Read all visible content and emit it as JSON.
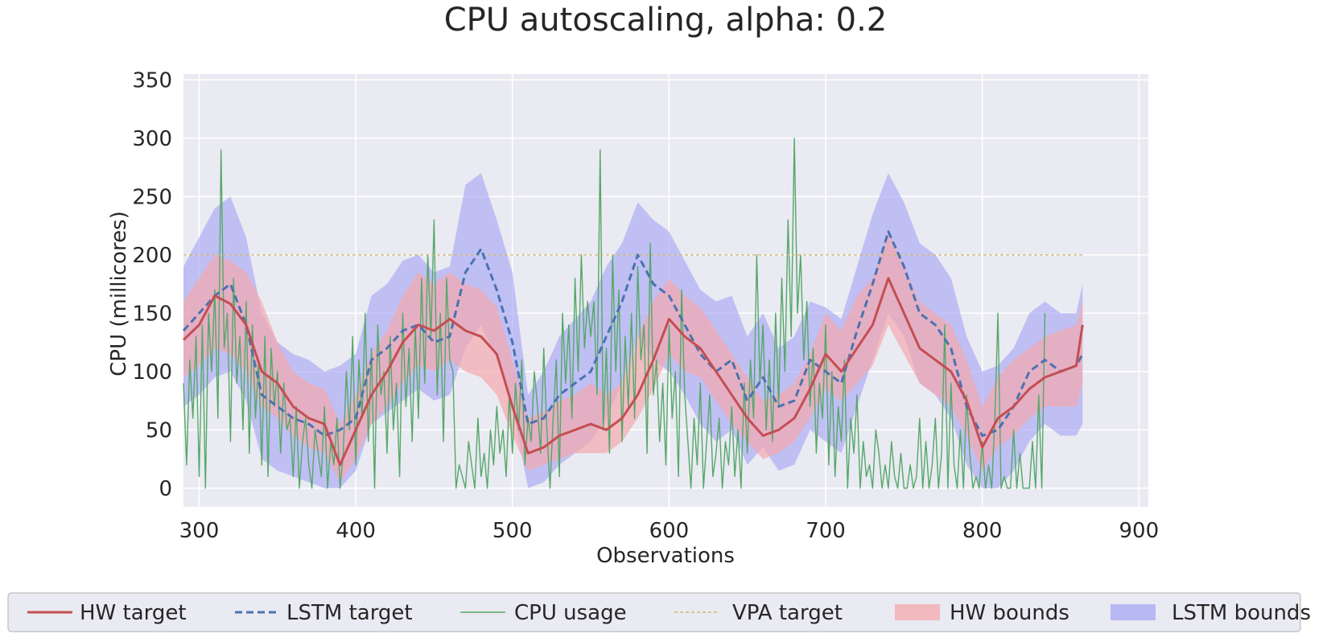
{
  "chart_data": {
    "type": "line",
    "title": "CPU autoscaling, alpha: 0.2",
    "xlabel": "Observations",
    "ylabel": "CPU (millicores)",
    "xlim": [
      290,
      906
    ],
    "ylim": [
      -16,
      355
    ],
    "xticks": [
      300,
      400,
      500,
      600,
      700,
      800,
      900
    ],
    "yticks": [
      0,
      50,
      100,
      150,
      200,
      250,
      300,
      350
    ],
    "grid": true,
    "legend_position": "bottom",
    "colors": {
      "background": "#eaeaf2",
      "grid": "#ffffff",
      "hw_target": "#c44e52",
      "lstm_target": "#4c72b0",
      "cpu_usage": "#55a868",
      "vpa_target": "#ccb974",
      "hw_bounds": "#f4a8ae",
      "lstm_bounds": "#a7a7f5"
    },
    "legend": [
      {
        "key": "hw_target",
        "label": "HW target",
        "style": "line"
      },
      {
        "key": "lstm_target",
        "label": "LSTM target",
        "style": "dashed"
      },
      {
        "key": "cpu_usage",
        "label": "CPU usage",
        "style": "thin"
      },
      {
        "key": "vpa_target",
        "label": "VPA target",
        "style": "dotted"
      },
      {
        "key": "hw_bounds",
        "label": "HW bounds",
        "style": "patch"
      },
      {
        "key": "lstm_bounds",
        "label": "LSTM bounds",
        "style": "patch"
      }
    ],
    "series": [
      {
        "name": "HW target",
        "x": [
          290,
          300,
          310,
          320,
          330,
          340,
          350,
          360,
          370,
          380,
          390,
          400,
          410,
          420,
          430,
          440,
          450,
          460,
          470,
          480,
          490,
          500,
          510,
          520,
          530,
          540,
          550,
          560,
          570,
          580,
          590,
          600,
          610,
          620,
          630,
          640,
          650,
          660,
          670,
          680,
          690,
          700,
          710,
          720,
          730,
          740,
          750,
          760,
          770,
          780,
          790,
          800,
          810,
          820,
          830,
          840,
          850,
          860,
          864
        ],
        "y": [
          127,
          140,
          165,
          158,
          140,
          100,
          90,
          70,
          60,
          55,
          20,
          50,
          80,
          100,
          125,
          140,
          135,
          145,
          135,
          130,
          115,
          70,
          30,
          35,
          45,
          50,
          55,
          50,
          60,
          80,
          110,
          145,
          130,
          120,
          100,
          80,
          60,
          45,
          50,
          60,
          85,
          115,
          100,
          120,
          140,
          180,
          150,
          120,
          110,
          100,
          75,
          35,
          60,
          70,
          85,
          95,
          100,
          105,
          140
        ]
      },
      {
        "name": "LSTM target",
        "x": [
          290,
          300,
          310,
          320,
          330,
          340,
          350,
          360,
          370,
          380,
          390,
          400,
          410,
          420,
          430,
          440,
          450,
          460,
          470,
          480,
          490,
          500,
          510,
          520,
          530,
          540,
          550,
          560,
          570,
          580,
          590,
          600,
          610,
          620,
          630,
          640,
          650,
          660,
          670,
          680,
          690,
          700,
          710,
          720,
          730,
          740,
          750,
          760,
          770,
          780,
          790,
          800,
          810,
          820,
          830,
          840,
          850,
          860,
          864
        ],
        "y": [
          135,
          150,
          165,
          175,
          140,
          80,
          70,
          60,
          55,
          45,
          50,
          60,
          110,
          120,
          135,
          140,
          125,
          130,
          185,
          205,
          170,
          125,
          55,
          60,
          80,
          90,
          100,
          130,
          160,
          200,
          175,
          165,
          140,
          115,
          100,
          110,
          75,
          95,
          70,
          75,
          110,
          100,
          90,
          135,
          175,
          220,
          190,
          150,
          140,
          120,
          70,
          45,
          50,
          70,
          100,
          110,
          100,
          105,
          115
        ]
      },
      {
        "name": "VPA target",
        "x": [
          290,
          864
        ],
        "y": [
          200,
          200
        ]
      }
    ],
    "cpu_usage": {
      "name": "CPU usage",
      "x_start": 290,
      "x_step": 2,
      "values": [
        90,
        20,
        110,
        60,
        130,
        10,
        140,
        0,
        150,
        100,
        170,
        60,
        290,
        120,
        150,
        40,
        180,
        90,
        130,
        50,
        160,
        30,
        140,
        60,
        110,
        20,
        130,
        10,
        120,
        70,
        100,
        30,
        90,
        50,
        60,
        10,
        70,
        0,
        40,
        60,
        20,
        0,
        50,
        30,
        10,
        70,
        0,
        40,
        20,
        60,
        0,
        30,
        100,
        50,
        130,
        20,
        110,
        60,
        150,
        40,
        120,
        0,
        140,
        80,
        100,
        30,
        130,
        50,
        90,
        10,
        150,
        70,
        120,
        40,
        140,
        60,
        180,
        90,
        200,
        130,
        230,
        80,
        150,
        40,
        180,
        110,
        100,
        0,
        20,
        10,
        0,
        40,
        20,
        0,
        60,
        10,
        30,
        0,
        50,
        20,
        70,
        30,
        50,
        10,
        80,
        30,
        90,
        50,
        110,
        20,
        60,
        40,
        100,
        70,
        30,
        120,
        50,
        0,
        60,
        110,
        10,
        150,
        90,
        140,
        60,
        180,
        100,
        200,
        120,
        160,
        130,
        160,
        80,
        290,
        50,
        120,
        30,
        200,
        100,
        170,
        40,
        130,
        70,
        150,
        60,
        190,
        110,
        140,
        30,
        210,
        80,
        110,
        40,
        90,
        20,
        140,
        60,
        100,
        10,
        170,
        80,
        40,
        0,
        60,
        20,
        90,
        0,
        40,
        80,
        10,
        30,
        60,
        0,
        40,
        20,
        70,
        10,
        50,
        0,
        90,
        30,
        110,
        60,
        200,
        90,
        140,
        50,
        110,
        40,
        150,
        70,
        180,
        100,
        230,
        130,
        300,
        150,
        200,
        110,
        160,
        70,
        120,
        30,
        90,
        60,
        140,
        20,
        100,
        10,
        70,
        40,
        110,
        0,
        60,
        30,
        80,
        0,
        40,
        10,
        20,
        0,
        50,
        30,
        0,
        20,
        0,
        40,
        10,
        0,
        30,
        0,
        0,
        20,
        0,
        10,
        60,
        0,
        40,
        0,
        20,
        60,
        0,
        30,
        140,
        0,
        90,
        20,
        0,
        50,
        0,
        80,
        30,
        0,
        10,
        0,
        40,
        0,
        20,
        0,
        60,
        150,
        0,
        10,
        0,
        0,
        50,
        0,
        30,
        0,
        0,
        0,
        40,
        0,
        80,
        0,
        150
      ]
    },
    "bands": [
      {
        "name": "HW bounds",
        "x": [
          290,
          300,
          310,
          320,
          330,
          340,
          350,
          360,
          370,
          380,
          390,
          400,
          410,
          420,
          430,
          440,
          450,
          460,
          470,
          480,
          490,
          500,
          510,
          520,
          530,
          540,
          550,
          560,
          570,
          580,
          590,
          600,
          610,
          620,
          630,
          640,
          650,
          660,
          670,
          680,
          690,
          700,
          710,
          720,
          730,
          740,
          750,
          760,
          770,
          780,
          790,
          800,
          810,
          820,
          830,
          840,
          850,
          860,
          864
        ],
        "lower": [
          95,
          105,
          120,
          115,
          100,
          70,
          60,
          45,
          35,
          30,
          5,
          25,
          55,
          70,
          90,
          105,
          100,
          110,
          100,
          95,
          80,
          45,
          15,
          20,
          25,
          30,
          30,
          30,
          40,
          60,
          85,
          115,
          100,
          95,
          75,
          55,
          40,
          25,
          30,
          40,
          60,
          85,
          75,
          90,
          105,
          140,
          115,
          90,
          80,
          70,
          45,
          15,
          35,
          45,
          60,
          70,
          70,
          70,
          90
        ],
        "upper": [
          160,
          180,
          200,
          195,
          185,
          160,
          125,
          100,
          90,
          85,
          55,
          80,
          115,
          135,
          165,
          185,
          175,
          185,
          175,
          170,
          155,
          110,
          60,
          65,
          75,
          80,
          90,
          80,
          90,
          130,
          160,
          180,
          165,
          155,
          135,
          115,
          95,
          75,
          80,
          90,
          115,
          150,
          135,
          165,
          180,
          220,
          190,
          160,
          150,
          140,
          110,
          70,
          95,
          110,
          120,
          130,
          135,
          140,
          160
        ]
      },
      {
        "name": "LSTM bounds",
        "x": [
          290,
          300,
          310,
          320,
          330,
          340,
          350,
          360,
          370,
          380,
          390,
          400,
          410,
          420,
          430,
          440,
          450,
          460,
          470,
          480,
          490,
          500,
          510,
          520,
          530,
          540,
          550,
          560,
          570,
          580,
          590,
          600,
          610,
          620,
          630,
          640,
          650,
          660,
          670,
          680,
          690,
          700,
          710,
          720,
          730,
          740,
          750,
          760,
          770,
          780,
          790,
          800,
          810,
          820,
          830,
          840,
          850,
          860,
          864
        ],
        "lower": [
          70,
          80,
          95,
          100,
          75,
          25,
          15,
          10,
          5,
          0,
          0,
          15,
          55,
          65,
          75,
          85,
          75,
          80,
          120,
          140,
          110,
          70,
          0,
          5,
          20,
          30,
          40,
          60,
          90,
          130,
          110,
          100,
          80,
          55,
          40,
          50,
          20,
          35,
          15,
          20,
          50,
          40,
          30,
          70,
          110,
          150,
          130,
          90,
          80,
          60,
          20,
          0,
          0,
          15,
          40,
          55,
          45,
          45,
          55
        ],
        "upper": [
          190,
          215,
          240,
          250,
          215,
          150,
          125,
          115,
          110,
          100,
          105,
          115,
          165,
          175,
          195,
          200,
          185,
          190,
          260,
          270,
          230,
          185,
          80,
          100,
          130,
          145,
          160,
          190,
          210,
          245,
          230,
          220,
          195,
          170,
          160,
          165,
          130,
          150,
          120,
          130,
          160,
          155,
          145,
          190,
          235,
          270,
          245,
          210,
          200,
          180,
          130,
          100,
          105,
          120,
          150,
          160,
          150,
          150,
          175
        ]
      }
    ]
  }
}
